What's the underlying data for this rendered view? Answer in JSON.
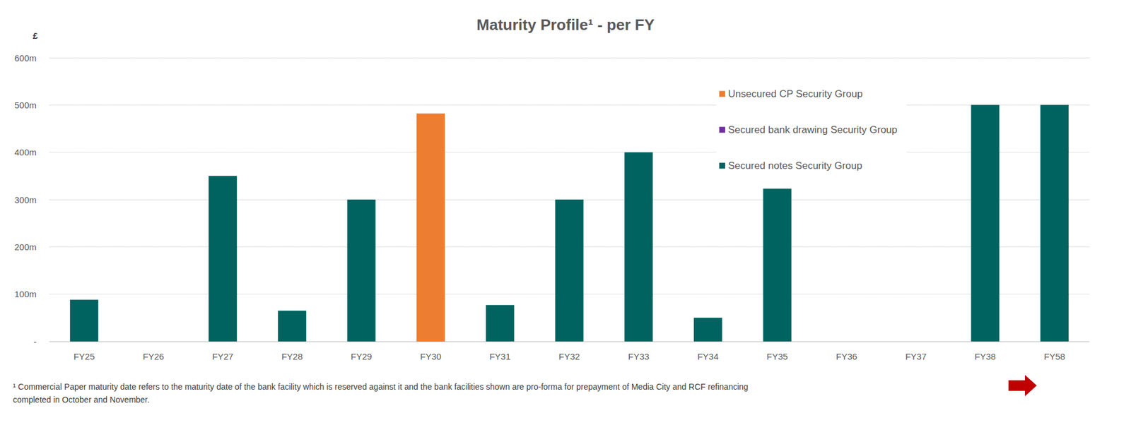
{
  "chart_data": {
    "type": "bar",
    "title": "Maturity Profile¹ - per FY",
    "y_label": "£",
    "annotations": [
      "¹ Commercial Paper maturity date refers to the maturity date of the bank facility which is reserved against it and the bank facilities shown are pro-forma for prepayment of Media City and RCF refinancing",
      "completed in October and November."
    ],
    "categories": [
      "FY25",
      "FY26",
      "FY27",
      "FY28",
      "FY29",
      "FY30",
      "FY31",
      "FY32",
      "FY33",
      "FY34",
      "FY35",
      "FY36",
      "FY37",
      "FY38",
      "FY58"
    ],
    "series": [
      {
        "name": "Unsecured CP Security Group",
        "color": "#ED7D31",
        "values": [
          null,
          null,
          null,
          null,
          null,
          482,
          null,
          null,
          null,
          null,
          null,
          null,
          null,
          null,
          null
        ]
      },
      {
        "name": "Secured bank drawing Security Group",
        "color": "#7030A0",
        "values": [
          null,
          null,
          null,
          null,
          null,
          null,
          null,
          null,
          null,
          null,
          null,
          null,
          null,
          null,
          null
        ]
      },
      {
        "name": "Secured notes Security Group",
        "color": "#00635F",
        "values": [
          88,
          null,
          350,
          65,
          300,
          null,
          77,
          300,
          400,
          50,
          323,
          null,
          null,
          500,
          500
        ]
      }
    ],
    "stacked": true,
    "ylim": [
      0,
      600
    ],
    "yticks": [
      {
        "value": 0,
        "label": "-"
      },
      {
        "value": 100,
        "label": "100m"
      },
      {
        "value": 200,
        "label": "200m"
      },
      {
        "value": 300,
        "label": "300m"
      },
      {
        "value": 400,
        "label": "400m"
      },
      {
        "value": 500,
        "label": "500m"
      },
      {
        "value": 600,
        "label": "600m"
      }
    ],
    "grid": true,
    "legend": "top-right",
    "data_labels": false
  }
}
